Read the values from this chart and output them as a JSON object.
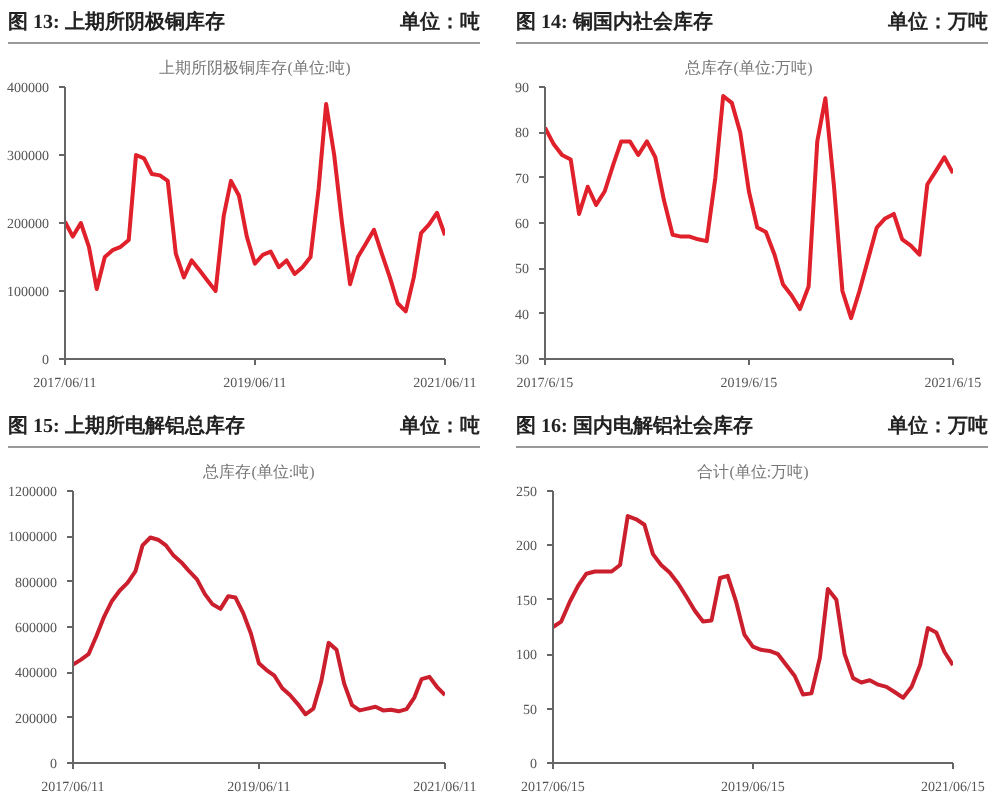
{
  "chart_data": [
    {
      "type": "line",
      "title": "图 13:  上期所阴极铜库存",
      "subtitle": "上期所阴极铜库存(单位:吨)",
      "annotations": [
        "单位：吨"
      ],
      "x": [
        "2017-06-11",
        "2017-07-11",
        "2017-08-11",
        "2017-09-11",
        "2017-10-11",
        "2017-11-11",
        "2017-12-11",
        "2018-01-11",
        "2018-02-11",
        "2018-03-11",
        "2018-04-11",
        "2018-05-11",
        "2018-06-11",
        "2018-07-11",
        "2018-08-11",
        "2018-09-11",
        "2018-10-11",
        "2018-11-11",
        "2018-12-11",
        "2019-01-11",
        "2019-02-11",
        "2019-03-11",
        "2019-04-11",
        "2019-05-11",
        "2019-06-11",
        "2019-07-11",
        "2019-08-11",
        "2019-09-11",
        "2019-10-11",
        "2019-11-11",
        "2019-12-11",
        "2020-01-11",
        "2020-02-11",
        "2020-03-11",
        "2020-04-11",
        "2020-05-11",
        "2020-06-11",
        "2020-07-11",
        "2020-08-11",
        "2020-09-11",
        "2020-10-11",
        "2020-11-11",
        "2020-12-11",
        "2021-01-11",
        "2021-02-11",
        "2021-03-11",
        "2021-04-11",
        "2021-05-11",
        "2021-06-11"
      ],
      "series": [
        {
          "color": "#e0202a",
          "values": [
            202000,
            180000,
            200000,
            165000,
            103000,
            150000,
            160000,
            165000,
            175000,
            300000,
            295000,
            272000,
            270000,
            262000,
            155000,
            120000,
            145000,
            130000,
            115000,
            100000,
            210000,
            262000,
            240000,
            180000,
            140000,
            153000,
            158000,
            135000,
            145000,
            125000,
            135000,
            150000,
            250000,
            375000,
            300000,
            200000,
            110000,
            150000,
            170000,
            190000,
            155000,
            120000,
            82000,
            70000,
            120000,
            185000,
            198000,
            215000,
            182000
          ]
        }
      ],
      "xlim": [
        "2017-06-11",
        "2021-06-11"
      ],
      "xticks": [
        {
          "value": "2017-06-11",
          "label": "2017/06/11"
        },
        {
          "value": "2019-06-11",
          "label": "2019/06/11"
        },
        {
          "value": "2021-06-11",
          "label": "2021/06/11"
        }
      ],
      "ylim": [
        0,
        400000
      ],
      "yticks": [
        0,
        100000,
        200000,
        300000,
        400000
      ],
      "grid": false
    },
    {
      "type": "line",
      "title": "图 14:  铜国内社会库存",
      "subtitle": "总库存(单位:万吨)",
      "annotations": [
        "单位：万吨"
      ],
      "x": [
        "2017-06-15",
        "2017-07-15",
        "2017-08-15",
        "2017-09-15",
        "2017-10-15",
        "2017-11-15",
        "2017-12-15",
        "2018-01-15",
        "2018-02-15",
        "2018-03-15",
        "2018-04-15",
        "2018-05-15",
        "2018-06-15",
        "2018-07-15",
        "2018-08-15",
        "2018-09-15",
        "2018-10-15",
        "2018-11-15",
        "2018-12-15",
        "2019-01-15",
        "2019-02-15",
        "2019-03-15",
        "2019-04-15",
        "2019-05-15",
        "2019-06-15",
        "2019-07-15",
        "2019-08-15",
        "2019-09-15",
        "2019-10-15",
        "2019-11-15",
        "2019-12-15",
        "2020-01-15",
        "2020-02-15",
        "2020-03-15",
        "2020-04-15",
        "2020-05-15",
        "2020-06-15",
        "2020-07-15",
        "2020-08-15",
        "2020-09-15",
        "2020-10-15",
        "2020-11-15",
        "2020-12-15",
        "2021-01-15",
        "2021-02-15",
        "2021-03-15",
        "2021-04-15",
        "2021-05-15",
        "2021-06-15"
      ],
      "series": [
        {
          "color": "#e0202a",
          "values": [
            81,
            77.5,
            75,
            74,
            62,
            68,
            64,
            67,
            73,
            78,
            78,
            75,
            78,
            74.5,
            65,
            57.4,
            57,
            57,
            56.4,
            56,
            70,
            88,
            86.5,
            80,
            67,
            59,
            58,
            53,
            46.5,
            44,
            41,
            46,
            78,
            87.5,
            68,
            45,
            39,
            45,
            52,
            59,
            61,
            62,
            56.4,
            55,
            53,
            68.5,
            71.5,
            74.5,
            71
          ]
        }
      ],
      "xlim": [
        "2017-06-15",
        "2021-06-15"
      ],
      "xticks": [
        {
          "value": "2017-06-15",
          "label": "2017/6/15"
        },
        {
          "value": "2019-06-15",
          "label": "2019/6/15"
        },
        {
          "value": "2021-06-15",
          "label": "2021/6/15"
        }
      ],
      "ylim": [
        30,
        90
      ],
      "yticks": [
        30,
        40,
        50,
        60,
        70,
        80,
        90
      ],
      "grid": false
    },
    {
      "type": "line",
      "title": "图 15:  上期所电解铝总库存",
      "subtitle": "总库存(单位:吨)",
      "annotations": [
        "单位：吨"
      ],
      "x": [
        "2017-06-11",
        "2017-07-11",
        "2017-08-11",
        "2017-09-11",
        "2017-10-11",
        "2017-11-11",
        "2017-12-11",
        "2018-01-11",
        "2018-02-11",
        "2018-03-11",
        "2018-04-11",
        "2018-05-11",
        "2018-06-11",
        "2018-07-11",
        "2018-08-11",
        "2018-09-11",
        "2018-10-11",
        "2018-11-11",
        "2018-12-11",
        "2019-01-11",
        "2019-02-11",
        "2019-03-11",
        "2019-04-11",
        "2019-05-11",
        "2019-06-11",
        "2019-07-11",
        "2019-08-11",
        "2019-09-11",
        "2019-10-11",
        "2019-11-11",
        "2019-12-11",
        "2020-01-11",
        "2020-02-11",
        "2020-03-11",
        "2020-04-11",
        "2020-05-11",
        "2020-06-11",
        "2020-07-11",
        "2020-08-11",
        "2020-09-11",
        "2020-10-11",
        "2020-11-11",
        "2020-12-11",
        "2021-01-11",
        "2021-02-11",
        "2021-03-11",
        "2021-04-11",
        "2021-05-11",
        "2021-06-11"
      ],
      "series": [
        {
          "color": "#cc1f2e",
          "values": [
            434000,
            455000,
            480000,
            560000,
            645000,
            715000,
            760000,
            795000,
            845000,
            960000,
            995000,
            985000,
            960000,
            915000,
            885000,
            845000,
            810000,
            745000,
            700000,
            680000,
            736000,
            730000,
            660000,
            570000,
            440000,
            410000,
            385000,
            330000,
            300000,
            260000,
            215000,
            240000,
            360000,
            530000,
            500000,
            350000,
            255000,
            232000,
            240000,
            248000,
            232000,
            235000,
            228000,
            238000,
            290000,
            370000,
            380000,
            335000,
            300000
          ]
        }
      ],
      "xlim": [
        "2017-06-11",
        "2021-06-11"
      ],
      "xticks": [
        {
          "value": "2017-06-11",
          "label": "2017/06/11"
        },
        {
          "value": "2019-06-11",
          "label": "2019/06/11"
        },
        {
          "value": "2021-06-11",
          "label": "2021/06/11"
        }
      ],
      "ylim": [
        0,
        1200000
      ],
      "yticks": [
        0,
        200000,
        400000,
        600000,
        800000,
        1000000,
        1200000
      ],
      "grid": false
    },
    {
      "type": "line",
      "title": "图 16:  国内电解铝社会库存",
      "subtitle": "合计(单位:万吨)",
      "annotations": [
        "单位：万吨"
      ],
      "x": [
        "2017-06-15",
        "2017-07-15",
        "2017-08-15",
        "2017-09-15",
        "2017-10-15",
        "2017-11-15",
        "2017-12-15",
        "2018-01-15",
        "2018-02-15",
        "2018-03-15",
        "2018-04-15",
        "2018-05-15",
        "2018-06-15",
        "2018-07-15",
        "2018-08-15",
        "2018-09-15",
        "2018-10-15",
        "2018-11-15",
        "2018-12-15",
        "2019-01-15",
        "2019-02-15",
        "2019-03-15",
        "2019-04-15",
        "2019-05-15",
        "2019-06-15",
        "2019-07-15",
        "2019-08-15",
        "2019-09-15",
        "2019-10-15",
        "2019-11-15",
        "2019-12-15",
        "2020-01-15",
        "2020-02-15",
        "2020-03-15",
        "2020-04-15",
        "2020-05-15",
        "2020-06-15",
        "2020-07-15",
        "2020-08-15",
        "2020-09-15",
        "2020-10-15",
        "2020-11-15",
        "2020-12-15",
        "2021-01-15",
        "2021-02-15",
        "2021-03-15",
        "2021-04-15",
        "2021-05-15",
        "2021-06-15"
      ],
      "series": [
        {
          "color": "#cc1f2e",
          "values": [
            125,
            130,
            148,
            163,
            174,
            176,
            176,
            176,
            182,
            227,
            224,
            219,
            192,
            182,
            175,
            165,
            153,
            140,
            130,
            131,
            170,
            172,
            148,
            118,
            107,
            104,
            103,
            100,
            90,
            80,
            63,
            64,
            97,
            160,
            150,
            100,
            78,
            74,
            76,
            72,
            70,
            65,
            60,
            70,
            90,
            124,
            120,
            102,
            90
          ]
        }
      ],
      "xlim": [
        "2017-06-15",
        "2021-06-15"
      ],
      "xticks": [
        {
          "value": "2017-06-15",
          "label": "2017/06/15"
        },
        {
          "value": "2019-06-15",
          "label": "2019/06/15"
        },
        {
          "value": "2021-06-15",
          "label": "2021/06/15"
        }
      ],
      "ylim": [
        0,
        250
      ],
      "yticks": [
        0,
        50,
        100,
        150,
        200,
        250
      ],
      "grid": false
    }
  ]
}
